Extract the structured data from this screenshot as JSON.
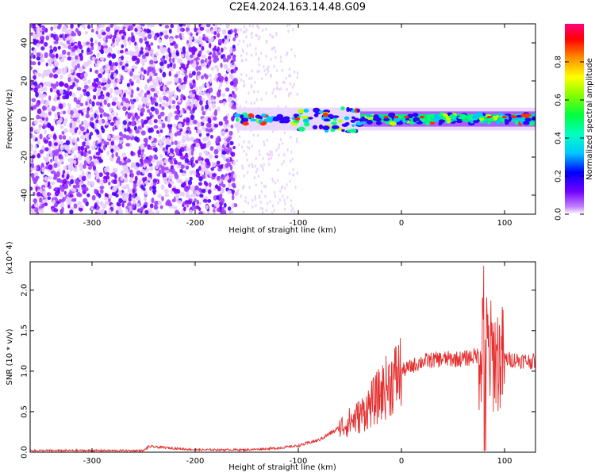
{
  "title": "C2E4.2024.163.14.48.G09",
  "chart_data": [
    {
      "type": "heatmap",
      "xlabel": "Height of straight line (km)",
      "ylabel": "Frequency (Hz)",
      "xlim": [
        -360,
        130
      ],
      "ylim": [
        -50,
        50
      ],
      "x_ticks": [
        -300,
        -200,
        -100,
        0,
        100
      ],
      "y_ticks": [
        -40,
        -20,
        0,
        20,
        40
      ],
      "colorbar": {
        "label": "Normalized spectral amplitude",
        "range": [
          0,
          1
        ],
        "ticks": [
          0.0,
          0.2,
          0.4,
          0.6,
          0.8
        ],
        "colormap": "rainbow (violet low, red/magenta high)"
      },
      "features": {
        "noise_region_x": [
          -360,
          -160
        ],
        "signal_band_center_hz": 0,
        "signal_start_x": -160,
        "wobble_region_x": [
          -100,
          -40
        ]
      },
      "grid": false
    },
    {
      "type": "line",
      "xlabel": "Height of straight line (km)",
      "ylabel": "SNR (10 * v/v)",
      "y_scale_label": "(x10^4)",
      "xlim": [
        -360,
        130
      ],
      "ylim": [
        0,
        2.35
      ],
      "x_ticks": [
        -300,
        -200,
        -100,
        0,
        100
      ],
      "y_ticks": [
        0.0,
        0.5,
        1.0,
        1.5,
        2.0
      ],
      "color": "#e53030",
      "grid": false,
      "series": [
        {
          "name": "",
          "x": [
            -360,
            -250,
            -245,
            -200,
            -150,
            -120,
            -100,
            -80,
            -60,
            -40,
            -25,
            -15,
            0,
            20,
            40,
            60,
            75,
            80,
            85,
            95,
            110,
            130
          ],
          "y": [
            0.02,
            0.02,
            0.07,
            0.03,
            0.03,
            0.05,
            0.08,
            0.15,
            0.3,
            0.45,
            0.65,
            0.8,
            1.0,
            1.12,
            1.15,
            1.15,
            1.2,
            1.5,
            1.2,
            1.15,
            1.14,
            1.12
          ]
        }
      ]
    }
  ]
}
